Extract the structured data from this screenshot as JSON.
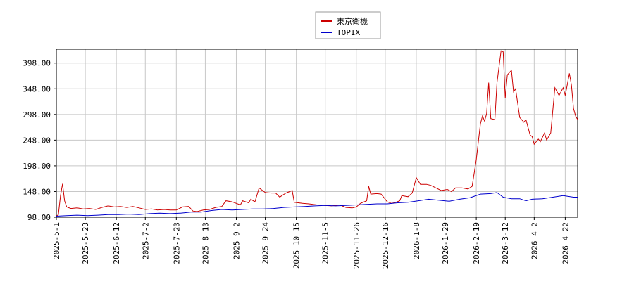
{
  "chart_data": {
    "type": "line",
    "xlim": [
      0,
      252
    ],
    "xticks": [
      {
        "value": 0,
        "label": "2025-5-1"
      },
      {
        "value": 14,
        "label": "2025-5-23"
      },
      {
        "value": 29,
        "label": "2025-6-12"
      },
      {
        "value": 43,
        "label": "2025-7-2"
      },
      {
        "value": 58,
        "label": "2025-7-23"
      },
      {
        "value": 72,
        "label": "2025-8-13"
      },
      {
        "value": 87,
        "label": "2025-9-2"
      },
      {
        "value": 101,
        "label": "2025-9-24"
      },
      {
        "value": 116,
        "label": "2025-10-15"
      },
      {
        "value": 130,
        "label": "2025-11-5"
      },
      {
        "value": 145,
        "label": "2025-11-26"
      },
      {
        "value": 159,
        "label": "2025-12-16"
      },
      {
        "value": 174,
        "label": "2026-1-8"
      },
      {
        "value": 188,
        "label": "2026-1-29"
      },
      {
        "value": 203,
        "label": "2026-2-19"
      },
      {
        "value": 217,
        "label": "2026-3-12"
      },
      {
        "value": 231,
        "label": "2026-4-2"
      },
      {
        "value": 246,
        "label": "2026-4-22"
      }
    ],
    "ylim": [
      98,
      425
    ],
    "yticks": [
      {
        "value": 98,
        "label": "98.00"
      },
      {
        "value": 148,
        "label": "148.00"
      },
      {
        "value": 198,
        "label": "198.00"
      },
      {
        "value": 248,
        "label": "248.00"
      },
      {
        "value": 298,
        "label": "298.00"
      },
      {
        "value": 348,
        "label": "348.00"
      },
      {
        "value": 398,
        "label": "398.00"
      }
    ],
    "grid": true,
    "legend": "top",
    "series": [
      {
        "name": "東京衛機",
        "color": "#cc0000",
        "x": [
          0,
          1,
          2,
          3,
          4,
          5,
          7,
          10,
          13,
          16,
          19,
          22,
          25,
          28,
          31,
          34,
          37,
          40,
          43,
          46,
          49,
          52,
          55,
          58,
          61,
          64,
          66,
          68,
          71,
          74,
          77,
          80,
          82,
          85,
          87,
          89,
          90,
          93,
          94,
          96,
          98,
          101,
          104,
          106,
          108,
          109,
          111,
          114,
          115,
          119,
          122,
          126,
          130,
          133,
          137,
          140,
          143,
          145,
          147,
          150,
          151,
          152,
          155,
          157,
          160,
          162,
          164,
          166,
          167,
          170,
          172,
          174,
          176,
          179,
          181,
          183,
          186,
          189,
          191,
          193,
          196,
          199,
          201,
          203,
          205,
          206,
          207,
          208,
          209,
          210,
          212,
          213,
          215,
          216,
          217,
          218,
          220,
          221,
          222,
          224,
          226,
          227,
          229,
          230,
          231,
          233,
          234,
          236,
          237,
          239,
          241,
          243,
          245,
          246,
          248,
          249,
          250,
          251,
          252
        ],
        "values": [
          100,
          103,
          140,
          163,
          130,
          118,
          115,
          116,
          114,
          115,
          113,
          117,
          120,
          118,
          119,
          117,
          119,
          116,
          113,
          114,
          112,
          113,
          112,
          112,
          118,
          119,
          110,
          109,
          112,
          113,
          117,
          119,
          130,
          128,
          125,
          122,
          130,
          126,
          133,
          128,
          155,
          146,
          145,
          145,
          137,
          140,
          145,
          150,
          127,
          125,
          124,
          122,
          121,
          120,
          122,
          117,
          116,
          118,
          125,
          130,
          158,
          143,
          144,
          143,
          128,
          125,
          127,
          130,
          140,
          138,
          145,
          175,
          162,
          162,
          160,
          156,
          150,
          152,
          148,
          155,
          155,
          153,
          158,
          210,
          280,
          295,
          285,
          300,
          360,
          290,
          288,
          360,
          422,
          420,
          330,
          375,
          384,
          342,
          348,
          292,
          283,
          288,
          258,
          255,
          240,
          250,
          245,
          262,
          248,
          262,
          350,
          335,
          350,
          335,
          378,
          355,
          310,
          295,
          288
        ]
      },
      {
        "name": "TOPIX",
        "color": "#0000cc",
        "x": [
          0,
          5,
          10,
          15,
          20,
          25,
          30,
          35,
          40,
          45,
          50,
          55,
          60,
          65,
          70,
          75,
          80,
          85,
          90,
          95,
          100,
          105,
          110,
          115,
          120,
          125,
          130,
          135,
          140,
          145,
          150,
          155,
          160,
          165,
          170,
          175,
          180,
          185,
          190,
          195,
          200,
          205,
          210,
          213,
          216,
          220,
          224,
          227,
          230,
          235,
          240,
          245,
          250,
          252
        ],
        "values": [
          100,
          101,
          102,
          101,
          102,
          103,
          103,
          104,
          103,
          105,
          106,
          105,
          106,
          108,
          108,
          111,
          113,
          112,
          113,
          114,
          114,
          115,
          117,
          118,
          119,
          120,
          121,
          120,
          121,
          122,
          123,
          124,
          124,
          126,
          127,
          130,
          133,
          131,
          129,
          133,
          136,
          143,
          144,
          146,
          137,
          134,
          134,
          130,
          133,
          134,
          137,
          140,
          137,
          137
        ]
      }
    ]
  }
}
